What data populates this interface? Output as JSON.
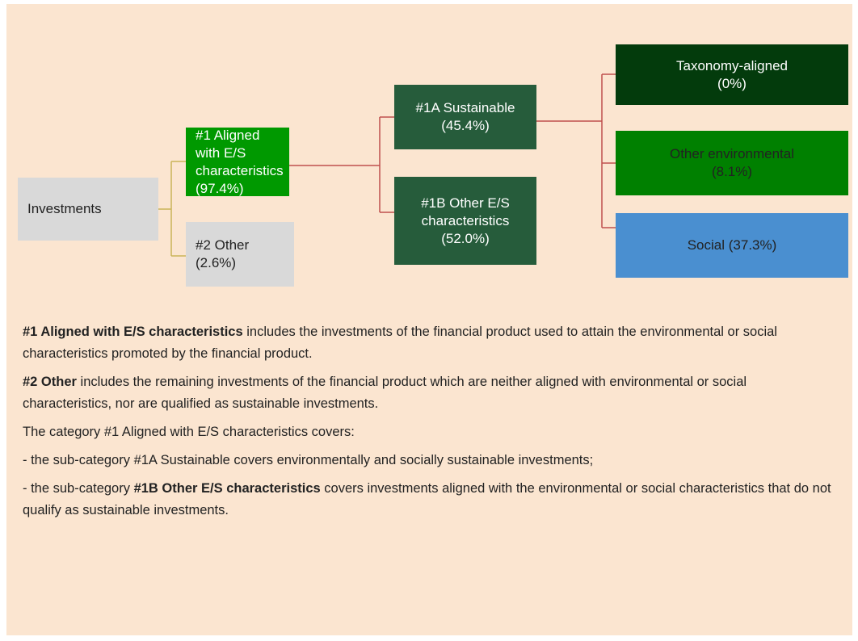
{
  "nodes": [
    {
      "lines": [
        "Investments"
      ]
    },
    {
      "lines": [
        "#1 Aligned with E/S",
        "characteristics",
        "(97.4%)"
      ]
    },
    {
      "lines": [
        "#2 Other (2.6%)"
      ]
    },
    {
      "lines": [
        "#1A Sustainable",
        "(45.4%)"
      ]
    },
    {
      "lines": [
        "#1B Other E/S",
        "characteristics",
        "(52.0%)"
      ]
    },
    {
      "lines": [
        "Taxonomy-aligned",
        "(0%)"
      ]
    },
    {
      "lines": [
        "Other environmental",
        "(8.1%)"
      ]
    },
    {
      "lines": [
        "Social (37.3%)"
      ]
    }
  ],
  "paragraphs": [
    {
      "parts": [
        {
          "text": "#1 Aligned with E/S characteristics",
          "bold": true
        },
        {
          "text": " includes the investments of the financial product used to attain the environmental or social characteristics promoted by the financial product.",
          "bold": false
        }
      ]
    },
    {
      "parts": [
        {
          "text": "#2 Other",
          "bold": true
        },
        {
          "text": " includes the remaining investments of the financial product which are neither aligned with environmental or social characteristics, nor are qualified as sustainable investments.",
          "bold": false
        }
      ]
    },
    {
      "parts": [
        {
          "text": "The category #1 Aligned with E/S characteristics covers:",
          "bold": false
        }
      ]
    },
    {
      "parts": [
        {
          "text": "- the sub-category #1A Sustainable covers environmentally and socially sustainable investments;",
          "bold": false
        }
      ]
    },
    {
      "parts": [
        {
          "text": "- the sub-category ",
          "bold": false
        },
        {
          "text": "#1B Other E/S characteristics",
          "bold": true
        },
        {
          "text": " covers investments aligned with the environmental or social characteristics that do not qualify as sustainable investments.",
          "bold": false
        }
      ]
    }
  ]
}
